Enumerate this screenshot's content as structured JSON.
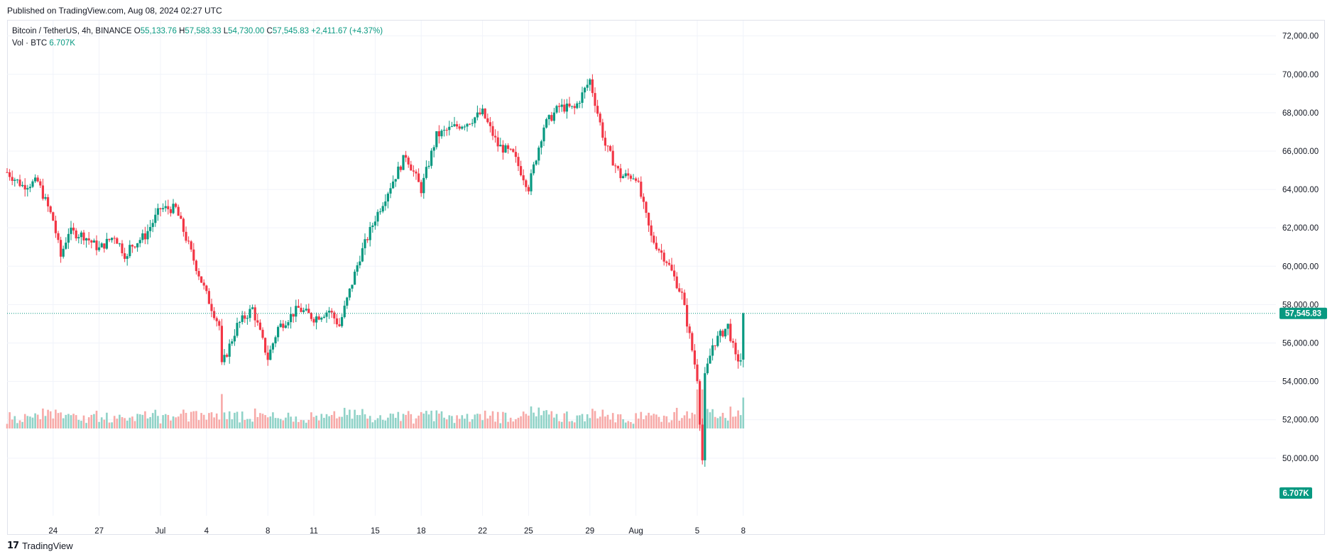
{
  "caption": "Published on TradingView.com, Aug 08, 2024 02:27 UTC",
  "legend": {
    "symbol": "Bitcoin / TetherUS, 4h, BINANCE",
    "o_key": "O",
    "o_val": "55,133.76",
    "h_key": "H",
    "h_val": "57,583.33",
    "l_key": "L",
    "l_val": "54,730.00",
    "c_key": "C",
    "c_val": "57,545.83",
    "change": "+2,411.67 (+4.37%)",
    "vol_label": "Vol · BTC",
    "vol_val": "6.707K"
  },
  "brand": {
    "logo": "17",
    "name": "TradingView"
  },
  "colors": {
    "up": "#089981",
    "down": "#f23645",
    "up_vol": "#8fd2c7",
    "down_vol": "#f7a9a7",
    "grid": "#f0f3fa",
    "axis_text": "#131722"
  },
  "chart_data": {
    "type": "candlestick",
    "title": "Bitcoin / TetherUS, 4h, BINANCE",
    "interval": "4h",
    "grid": true,
    "price_axis": {
      "position": "right",
      "ylim": [
        47000,
        72800
      ],
      "ticks": [
        50000,
        52000,
        54000,
        56000,
        58000,
        60000,
        62000,
        64000,
        66000,
        68000,
        70000,
        72000
      ],
      "tick_labels": [
        "50,000.00",
        "52,000.00",
        "54,000.00",
        "56,000.00",
        "58,000.00",
        "60,000.00",
        "62,000.00",
        "64,000.00",
        "66,000.00",
        "68,000.00",
        "70,000.00",
        "72,000.00"
      ]
    },
    "time_axis": {
      "labels": [
        "24",
        "27",
        "Jul",
        "4",
        "8",
        "11",
        "15",
        "18",
        "22",
        "25",
        "29",
        "Aug",
        "5",
        "8"
      ],
      "label_dates": [
        "2024-06-24",
        "2024-06-27",
        "2024-07-01",
        "2024-07-04",
        "2024-07-08",
        "2024-07-11",
        "2024-07-15",
        "2024-07-18",
        "2024-07-22",
        "2024-07-25",
        "2024-07-29",
        "2024-08-01",
        "2024-08-05",
        "2024-08-08"
      ],
      "range": [
        "2024-06-21",
        "2024-08-08"
      ]
    },
    "last_price": {
      "value": 57545.83,
      "label": "57,545.83"
    },
    "last_volume": {
      "value": 6707,
      "label": "6.707K"
    },
    "close_path": [
      {
        "date": "2024-06-21",
        "close": 64900
      },
      {
        "date": "2024-06-22",
        "close": 64200
      },
      {
        "date": "2024-06-23",
        "close": 64400
      },
      {
        "date": "2024-06-24",
        "close": 62400
      },
      {
        "date": "2024-06-24T12:00",
        "close": 60500
      },
      {
        "date": "2024-06-25",
        "close": 61800
      },
      {
        "date": "2024-06-26",
        "close": 61600
      },
      {
        "date": "2024-06-27",
        "close": 60900
      },
      {
        "date": "2024-06-28",
        "close": 61600
      },
      {
        "date": "2024-06-28T20:00",
        "close": 60400
      },
      {
        "date": "2024-06-29",
        "close": 61000
      },
      {
        "date": "2024-06-30",
        "close": 61600
      },
      {
        "date": "2024-07-01",
        "close": 63000
      },
      {
        "date": "2024-07-02",
        "close": 63000
      },
      {
        "date": "2024-07-03",
        "close": 60700
      },
      {
        "date": "2024-07-04",
        "close": 58500
      },
      {
        "date": "2024-07-04T20:00",
        "close": 56900
      },
      {
        "date": "2024-07-05",
        "close": 54800
      },
      {
        "date": "2024-07-06",
        "close": 56900
      },
      {
        "date": "2024-07-07",
        "close": 57800
      },
      {
        "date": "2024-07-08",
        "close": 55200
      },
      {
        "date": "2024-07-08T16:00",
        "close": 56800
      },
      {
        "date": "2024-07-10",
        "close": 57800
      },
      {
        "date": "2024-07-11",
        "close": 57300
      },
      {
        "date": "2024-07-12",
        "close": 57700
      },
      {
        "date": "2024-07-12T16:00",
        "close": 56900
      },
      {
        "date": "2024-07-13",
        "close": 57800
      },
      {
        "date": "2024-07-14",
        "close": 60500
      },
      {
        "date": "2024-07-15",
        "close": 62500
      },
      {
        "date": "2024-07-16",
        "close": 64200
      },
      {
        "date": "2024-07-17",
        "close": 65800
      },
      {
        "date": "2024-07-18",
        "close": 64000
      },
      {
        "date": "2024-07-19",
        "close": 66800
      },
      {
        "date": "2024-07-20",
        "close": 67200
      },
      {
        "date": "2024-07-21",
        "close": 67500
      },
      {
        "date": "2024-07-22",
        "close": 68000
      },
      {
        "date": "2024-07-23",
        "close": 66300
      },
      {
        "date": "2024-07-24",
        "close": 65800
      },
      {
        "date": "2024-07-25",
        "close": 64100
      },
      {
        "date": "2024-07-26",
        "close": 67300
      },
      {
        "date": "2024-07-27",
        "close": 68300
      },
      {
        "date": "2024-07-28",
        "close": 68200
      },
      {
        "date": "2024-07-29",
        "close": 69700
      },
      {
        "date": "2024-07-30",
        "close": 66300
      },
      {
        "date": "2024-07-31",
        "close": 64700
      },
      {
        "date": "2024-08-01",
        "close": 64700
      },
      {
        "date": "2024-08-02",
        "close": 61500
      },
      {
        "date": "2024-08-03",
        "close": 60300
      },
      {
        "date": "2024-08-04",
        "close": 58500
      },
      {
        "date": "2024-08-05",
        "close": 54200
      },
      {
        "date": "2024-08-05T04:00",
        "close": 52000
      },
      {
        "date": "2024-08-05T08:00",
        "close": 49900
      },
      {
        "date": "2024-08-05T12:00",
        "close": 54200
      },
      {
        "date": "2024-08-06",
        "close": 55900
      },
      {
        "date": "2024-08-07",
        "close": 56900
      },
      {
        "date": "2024-08-07T12:00",
        "close": 55200
      },
      {
        "date": "2024-08-07T20:00",
        "close": 55133.76
      },
      {
        "date": "2024-08-08",
        "close": 57545.83
      }
    ]
  }
}
